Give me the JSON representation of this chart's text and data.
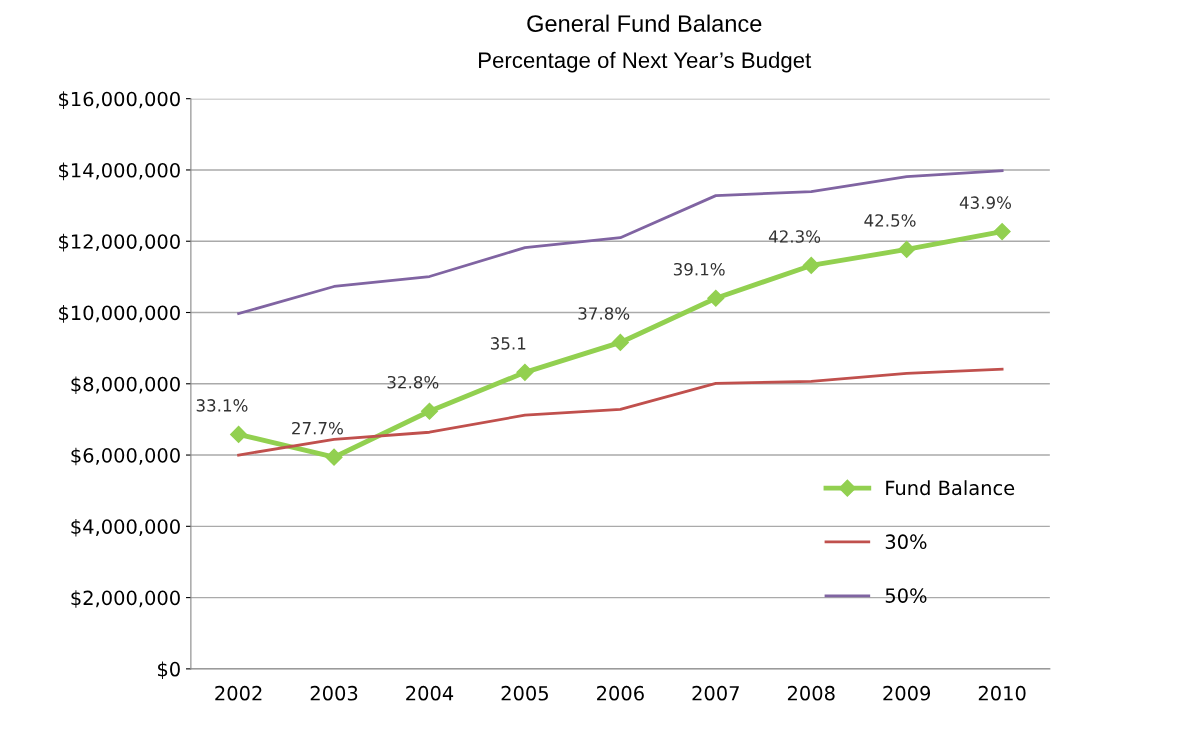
{
  "chart_data": {
    "type": "line",
    "title": "General Fund Balance",
    "subtitle": "Percentage of Next Year’s Budget",
    "categories": [
      "2002",
      "2003",
      "2004",
      "2005",
      "2006",
      "2007",
      "2008",
      "2009",
      "2010"
    ],
    "series": [
      {
        "name": "Fund Balance",
        "color": "#92d050",
        "marker": "diamond",
        "values": [
          6580000,
          5940000,
          7230000,
          8320000,
          9160000,
          10400000,
          11320000,
          11770000,
          12270000
        ]
      },
      {
        "name": "30%",
        "color": "#c0504d",
        "marker": "none",
        "values": [
          6000000,
          6440000,
          6640000,
          7120000,
          7280000,
          8010000,
          8070000,
          8290000,
          8410000
        ]
      },
      {
        "name": "50%",
        "color": "#8064a2",
        "marker": "none",
        "values": [
          9970000,
          10730000,
          11010000,
          11820000,
          12100000,
          13280000,
          13390000,
          13810000,
          13980000
        ]
      }
    ],
    "ylim": [
      0,
      16000000
    ],
    "yticks": [
      {
        "value": 0,
        "label": "$0"
      },
      {
        "value": 2000000,
        "label": "$2,000,000"
      },
      {
        "value": 4000000,
        "label": "$4,000,000"
      },
      {
        "value": 6000000,
        "label": "$6,000,000"
      },
      {
        "value": 8000000,
        "label": "$8,000,000"
      },
      {
        "value": 10000000,
        "label": "$10,000,000"
      },
      {
        "value": 12000000,
        "label": "$12,000,000"
      },
      {
        "value": 14000000,
        "label": "$14,000,000"
      },
      {
        "value": 16000000,
        "label": "$16,000,000"
      }
    ],
    "annotations": [
      {
        "text": "33.1%",
        "x": "2002",
        "y": 6580000
      },
      {
        "text": "27.7%",
        "x": "2003",
        "y": 5940000
      },
      {
        "text": "32.8%",
        "x": "2004",
        "y": 7230000
      },
      {
        "text": "35.1",
        "x": "2005",
        "y": 8320000
      },
      {
        "text": "37.8%",
        "x": "2006",
        "y": 9160000
      },
      {
        "text": "39.1%",
        "x": "2007",
        "y": 10400000
      },
      {
        "text": "42.3%",
        "x": "2008",
        "y": 11320000
      },
      {
        "text": "42.5%",
        "x": "2009",
        "y": 11770000
      },
      {
        "text": "43.9%",
        "x": "2010",
        "y": 12270000
      }
    ],
    "grid": "y",
    "legend": "right",
    "line_style": "solid"
  }
}
